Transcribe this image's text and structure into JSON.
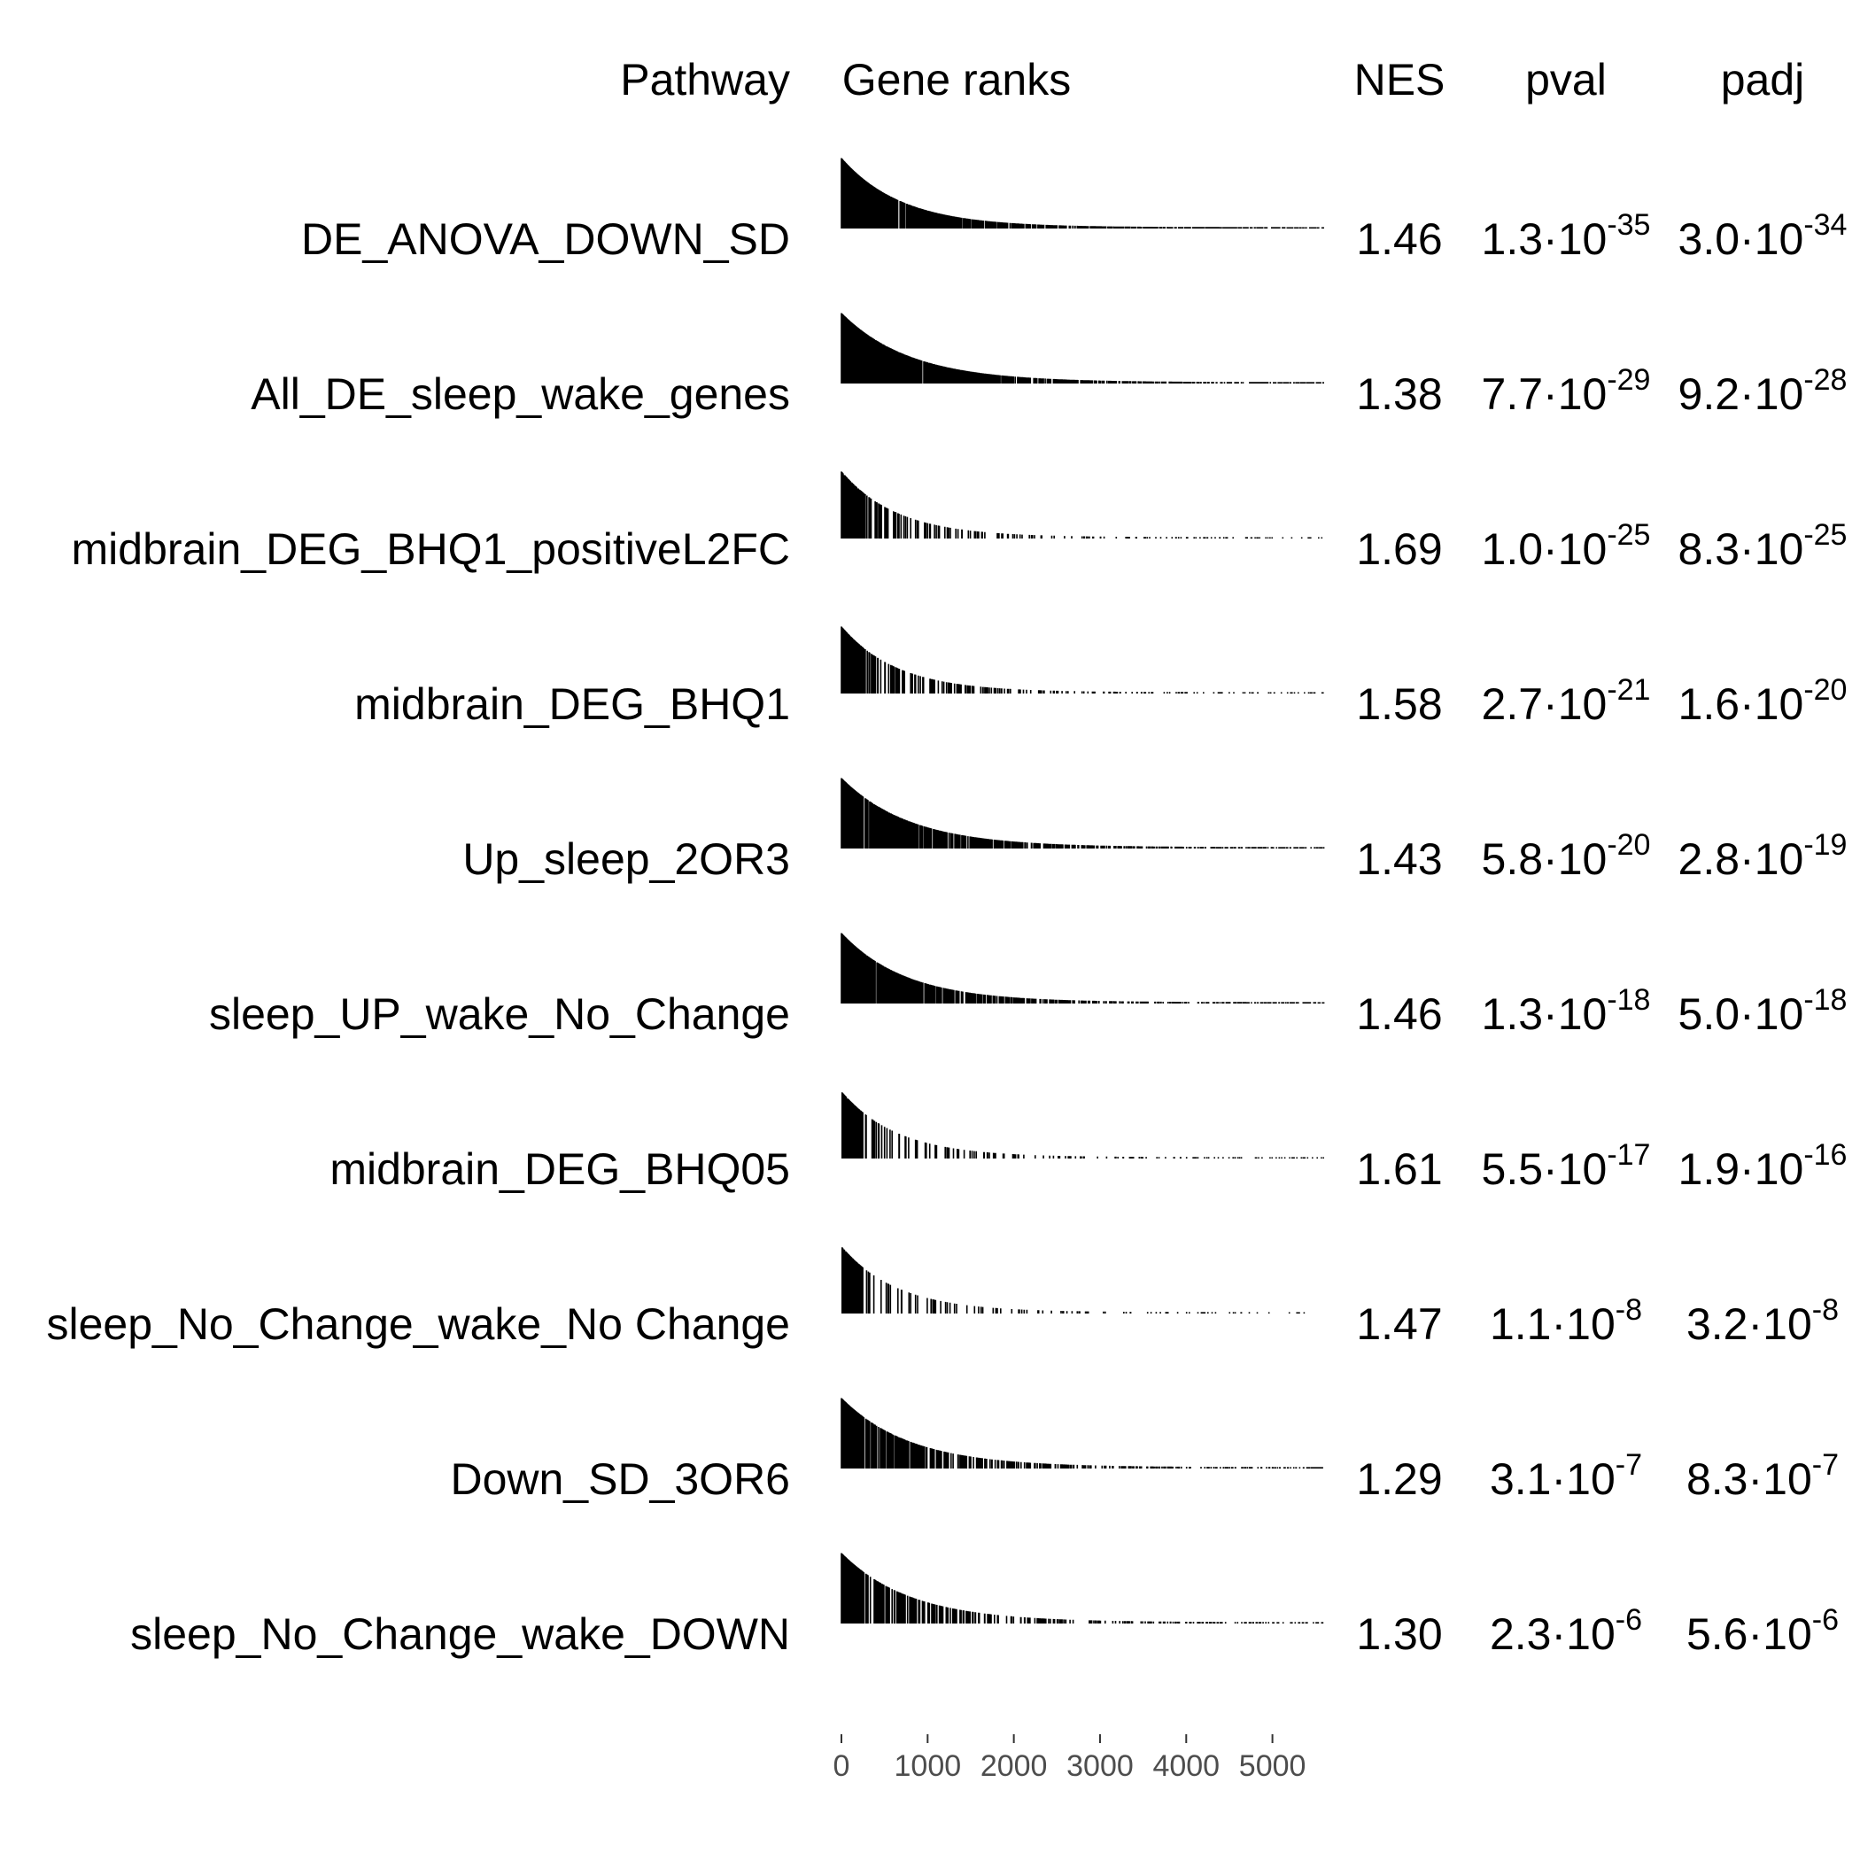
{
  "chart_data": {
    "type": "table",
    "columns": {
      "pathway": "Pathway",
      "ranks": "Gene ranks",
      "nes": "NES",
      "pval": "pval",
      "padj": "padj"
    },
    "rows": [
      {
        "pathway": "DE_ANOVA_DOWN_SD",
        "nes": "1.46",
        "pval_m": "1.3",
        "pval_e": "-35",
        "padj_m": "3.0",
        "padj_e": "-34",
        "density": 1.0,
        "decay": 700,
        "max": 1.0
      },
      {
        "pathway": "All_DE_sleep_wake_genes",
        "nes": "1.38",
        "pval_m": "7.7",
        "pval_e": "-29",
        "padj_m": "9.2",
        "padj_e": "-28",
        "density": 1.0,
        "decay": 800,
        "max": 1.0
      },
      {
        "pathway": "midbrain_DEG_BHQ1_positiveL2FC",
        "nes": "1.69",
        "pval_m": "1.0",
        "pval_e": "-25",
        "padj_m": "8.3",
        "padj_e": "-25",
        "density": 0.25,
        "decay": 650,
        "max": 0.95
      },
      {
        "pathway": "midbrain_DEG_BHQ1",
        "nes": "1.58",
        "pval_m": "2.7",
        "pval_e": "-21",
        "padj_m": "1.6",
        "padj_e": "-20",
        "density": 0.35,
        "decay": 650,
        "max": 0.95
      },
      {
        "pathway": "Up_sleep_2OR3",
        "nes": "1.43",
        "pval_m": "5.8",
        "pval_e": "-20",
        "padj_m": "2.8",
        "padj_e": "-19",
        "density": 0.7,
        "decay": 800,
        "max": 1.0
      },
      {
        "pathway": "sleep_UP_wake_No_Change",
        "nes": "1.46",
        "pval_m": "1.3",
        "pval_e": "-18",
        "padj_m": "5.0",
        "padj_e": "-18",
        "density": 0.7,
        "decay": 750,
        "max": 1.0
      },
      {
        "pathway": "midbrain_DEG_BHQ05",
        "nes": "1.61",
        "pval_m": "5.5",
        "pval_e": "-17",
        "padj_m": "1.9",
        "padj_e": "-16",
        "density": 0.22,
        "decay": 650,
        "max": 0.95
      },
      {
        "pathway": "sleep_No_Change_wake_No Change",
        "nes": "1.47",
        "pval_m": "1.1",
        "pval_e": "-8",
        "padj_m": "3.2",
        "padj_e": "-8",
        "density": 0.15,
        "decay": 650,
        "max": 0.95
      },
      {
        "pathway": "Down_SD_3OR6",
        "nes": "1.29",
        "pval_m": "3.1",
        "pval_e": "-7",
        "padj_m": "8.3",
        "padj_e": "-7",
        "density": 0.5,
        "decay": 800,
        "max": 1.0
      },
      {
        "pathway": "sleep_No_Change_wake_DOWN",
        "nes": "1.30",
        "pval_m": "2.3",
        "pval_e": "-6",
        "padj_m": "5.6",
        "padj_e": "-6",
        "density": 0.4,
        "decay": 800,
        "max": 1.0
      }
    ],
    "x_axis": {
      "ticks": [
        0,
        1000,
        2000,
        3000,
        4000,
        5000
      ],
      "range": [
        0,
        5600
      ]
    }
  }
}
